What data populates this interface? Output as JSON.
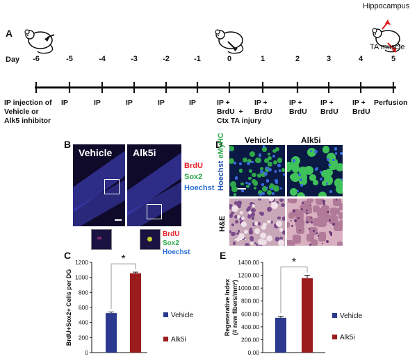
{
  "panels": {
    "A": "A",
    "B": "B",
    "C": "C",
    "D": "D",
    "E": "E"
  },
  "timeline": {
    "day_label": "Day",
    "days": [
      "-6",
      "-5",
      "-4",
      "-3",
      "-2",
      "-1",
      "0",
      "1",
      "2",
      "3",
      "4",
      "5"
    ],
    "events": [
      "IP injection of\nVehicle or\nAlk5 inhibitor",
      "IP",
      "IP",
      "IP",
      "IP",
      "IP",
      "IP +\nBrdU  +\nCtx TA injury",
      "IP +\nBrdU",
      "IP +\nBrdU",
      "IP +\nBrdU",
      "IP +\nBrdU",
      "Perfusion"
    ],
    "hippocampus_label": "Hippocampus",
    "ta_muscle_label": "TA muscle"
  },
  "panel_b": {
    "vehicle_label": "Vehicle",
    "alk5i_label": "Alk5i",
    "stains": [
      "BrdU",
      "Sox2",
      "Hoechst"
    ],
    "stain_colors": [
      "#e8202a",
      "#2aa84a",
      "#2a6fd6"
    ]
  },
  "panel_d": {
    "vehicle_label": "Vehicle",
    "alk5i_label": "Alk5i",
    "row1_label_a": "eMyHC",
    "row1_label_b": "Hoechst",
    "row2_label": "H&E"
  },
  "colors": {
    "vehicle": "#2b3a8f",
    "alk5i": "#9b1c1c"
  },
  "chart_data": [
    {
      "type": "bar",
      "panel": "C",
      "categories": [
        "Vehicle",
        "Alk5i"
      ],
      "values": [
        525,
        1055
      ],
      "errors": [
        15,
        15
      ],
      "ylabel": "BrdU+Sox2+ Cells per DG",
      "ylim": [
        0,
        1200
      ],
      "yticks": [
        "0",
        "200",
        "400",
        "600",
        "800",
        "1000",
        "1200"
      ],
      "legend": [
        "Vehicle",
        "Alk5i"
      ],
      "significance": "*"
    },
    {
      "type": "bar",
      "panel": "E",
      "categories": [
        "Vehicle",
        "Alk5i"
      ],
      "values": [
        540,
        1155
      ],
      "errors": [
        25,
        45
      ],
      "ylabel": "Regenerative Index",
      "ylabel2": "(# new fibers/mm²)",
      "ylim": [
        0,
        1400
      ],
      "yticks": [
        "0.00",
        "200.00",
        "400.00",
        "600.00",
        "800.00",
        "1000.00",
        "1200.00",
        "1400.00"
      ],
      "legend": [
        "Vehicle",
        "Alk5i"
      ],
      "significance": "*"
    }
  ]
}
